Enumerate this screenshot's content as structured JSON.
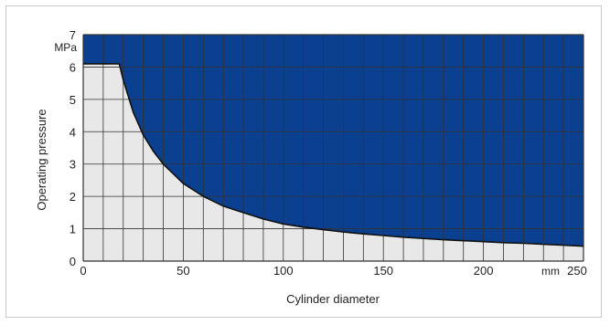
{
  "colors": {
    "region_above": "#0b3f8f",
    "region_below": "#e8e8e8",
    "grid_on_dark": "#1b1b1b",
    "grid_on_light": "#333333",
    "boundary": "#111111"
  },
  "chart_data": {
    "type": "area",
    "title": "",
    "xlabel": "Cylinder diameter",
    "ylabel": "Operating pressure",
    "x_unit": "mm",
    "y_unit": "MPa",
    "xlim": [
      0,
      250
    ],
    "ylim": [
      0,
      7
    ],
    "x_grid_step": 10,
    "y_grid_step": 1,
    "grid": true,
    "x_tick_labels": [
      "0",
      "50",
      "100",
      "150",
      "200"
    ],
    "x_last_tick_label": "250",
    "y_tick_labels": [
      "0",
      "1",
      "2",
      "3",
      "4",
      "5",
      "6",
      "7"
    ],
    "series": [
      {
        "x": [
          0,
          18,
          20,
          25,
          30,
          35,
          40,
          50,
          60,
          70,
          80,
          90,
          100,
          110,
          120,
          130,
          140,
          150,
          160,
          170,
          180,
          190,
          200,
          210,
          220,
          230,
          240,
          250
        ],
        "y": [
          6.1,
          6.1,
          5.6,
          4.6,
          3.9,
          3.4,
          3.0,
          2.4,
          2.0,
          1.7,
          1.5,
          1.3,
          1.15,
          1.05,
          0.97,
          0.9,
          0.84,
          0.79,
          0.74,
          0.7,
          0.66,
          0.63,
          0.6,
          0.57,
          0.55,
          0.52,
          0.49,
          0.46
        ]
      }
    ]
  }
}
